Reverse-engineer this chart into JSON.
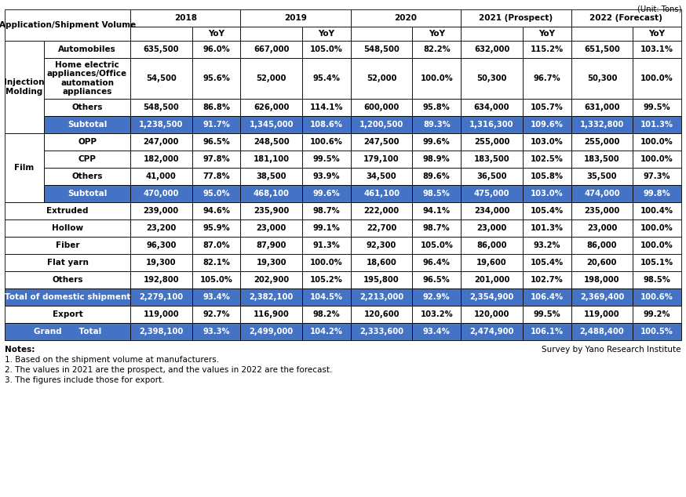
{
  "unit_label": "(Unit: Tons)",
  "notes_label": "Notes:",
  "survey_label": "Survey by Yano Research Institute",
  "note1": "1. Based on the shipment volume at manufacturers.",
  "note2": "2. The values in 2021 are the prospect, and the values in 2022 are the forecast.",
  "note3": "3. The figures include those for export.",
  "BLUE": "#4472C4",
  "WHITE": "#FFFFFF",
  "BLACK": "#000000",
  "years": [
    "2018",
    "2019",
    "2020",
    "2021 (Prospect)",
    "2022 (Forecast)"
  ],
  "rows": [
    {
      "group": "Injection\nMolding",
      "label": "Automobiles",
      "group_type": "injection",
      "values": [
        "635,500",
        "96.0%",
        "667,000",
        "105.0%",
        "548,500",
        "82.2%",
        "632,000",
        "115.2%",
        "651,500",
        "103.1%"
      ],
      "highlight": false
    },
    {
      "group": "Injection\nMolding",
      "label": "Home electric\nappliances/Office\nautomation\nappliances",
      "group_type": "injection",
      "values": [
        "54,500",
        "95.6%",
        "52,000",
        "95.4%",
        "52,000",
        "100.0%",
        "50,300",
        "96.7%",
        "50,300",
        "100.0%"
      ],
      "highlight": false
    },
    {
      "group": "Injection\nMolding",
      "label": "Others",
      "group_type": "injection",
      "values": [
        "548,500",
        "86.8%",
        "626,000",
        "114.1%",
        "600,000",
        "95.8%",
        "634,000",
        "105.7%",
        "631,000",
        "99.5%"
      ],
      "highlight": false
    },
    {
      "group": "Injection\nMolding",
      "label": "Subtotal",
      "group_type": "injection",
      "values": [
        "1,238,500",
        "91.7%",
        "1,345,000",
        "108.6%",
        "1,200,500",
        "89.3%",
        "1,316,300",
        "109.6%",
        "1,332,800",
        "101.3%"
      ],
      "highlight": true
    },
    {
      "group": "Film",
      "label": "OPP",
      "group_type": "film",
      "values": [
        "247,000",
        "96.5%",
        "248,500",
        "100.6%",
        "247,500",
        "99.6%",
        "255,000",
        "103.0%",
        "255,000",
        "100.0%"
      ],
      "highlight": false
    },
    {
      "group": "Film",
      "label": "CPP",
      "group_type": "film",
      "values": [
        "182,000",
        "97.8%",
        "181,100",
        "99.5%",
        "179,100",
        "98.9%",
        "183,500",
        "102.5%",
        "183,500",
        "100.0%"
      ],
      "highlight": false
    },
    {
      "group": "Film",
      "label": "Others",
      "group_type": "film",
      "values": [
        "41,000",
        "77.8%",
        "38,500",
        "93.9%",
        "34,500",
        "89.6%",
        "36,500",
        "105.8%",
        "35,500",
        "97.3%"
      ],
      "highlight": false
    },
    {
      "group": "Film",
      "label": "Subtotal",
      "group_type": "film",
      "values": [
        "470,000",
        "95.0%",
        "468,100",
        "99.6%",
        "461,100",
        "98.5%",
        "475,000",
        "103.0%",
        "474,000",
        "99.8%"
      ],
      "highlight": true
    },
    {
      "group": "",
      "label": "Extruded",
      "group_type": "none",
      "values": [
        "239,000",
        "94.6%",
        "235,900",
        "98.7%",
        "222,000",
        "94.1%",
        "234,000",
        "105.4%",
        "235,000",
        "100.4%"
      ],
      "highlight": false
    },
    {
      "group": "",
      "label": "Hollow",
      "group_type": "none",
      "values": [
        "23,200",
        "95.9%",
        "23,000",
        "99.1%",
        "22,700",
        "98.7%",
        "23,000",
        "101.3%",
        "23,000",
        "100.0%"
      ],
      "highlight": false
    },
    {
      "group": "",
      "label": "Fiber",
      "group_type": "none",
      "values": [
        "96,300",
        "87.0%",
        "87,900",
        "91.3%",
        "92,300",
        "105.0%",
        "86,000",
        "93.2%",
        "86,000",
        "100.0%"
      ],
      "highlight": false
    },
    {
      "group": "",
      "label": "Flat yarn",
      "group_type": "none",
      "values": [
        "19,300",
        "82.1%",
        "19,300",
        "100.0%",
        "18,600",
        "96.4%",
        "19,600",
        "105.4%",
        "20,600",
        "105.1%"
      ],
      "highlight": false
    },
    {
      "group": "",
      "label": "Others",
      "group_type": "none",
      "values": [
        "192,800",
        "105.0%",
        "202,900",
        "105.2%",
        "195,800",
        "96.5%",
        "201,000",
        "102.7%",
        "198,000",
        "98.5%"
      ],
      "highlight": false
    },
    {
      "group": "total",
      "label": "Total of domestic shipment",
      "group_type": "total",
      "values": [
        "2,279,100",
        "93.4%",
        "2,382,100",
        "104.5%",
        "2,213,000",
        "92.9%",
        "2,354,900",
        "106.4%",
        "2,369,400",
        "100.6%"
      ],
      "highlight": true
    },
    {
      "group": "",
      "label": "Export",
      "group_type": "export",
      "values": [
        "119,000",
        "92.7%",
        "116,900",
        "98.2%",
        "120,600",
        "103.2%",
        "120,000",
        "99.5%",
        "119,000",
        "99.2%"
      ],
      "highlight": false
    },
    {
      "group": "grand",
      "label": "Grand      Total",
      "group_type": "grand",
      "values": [
        "2,398,100",
        "93.3%",
        "2,499,000",
        "104.2%",
        "2,333,600",
        "93.4%",
        "2,474,900",
        "106.1%",
        "2,488,400",
        "100.5%"
      ],
      "highlight": true
    }
  ]
}
